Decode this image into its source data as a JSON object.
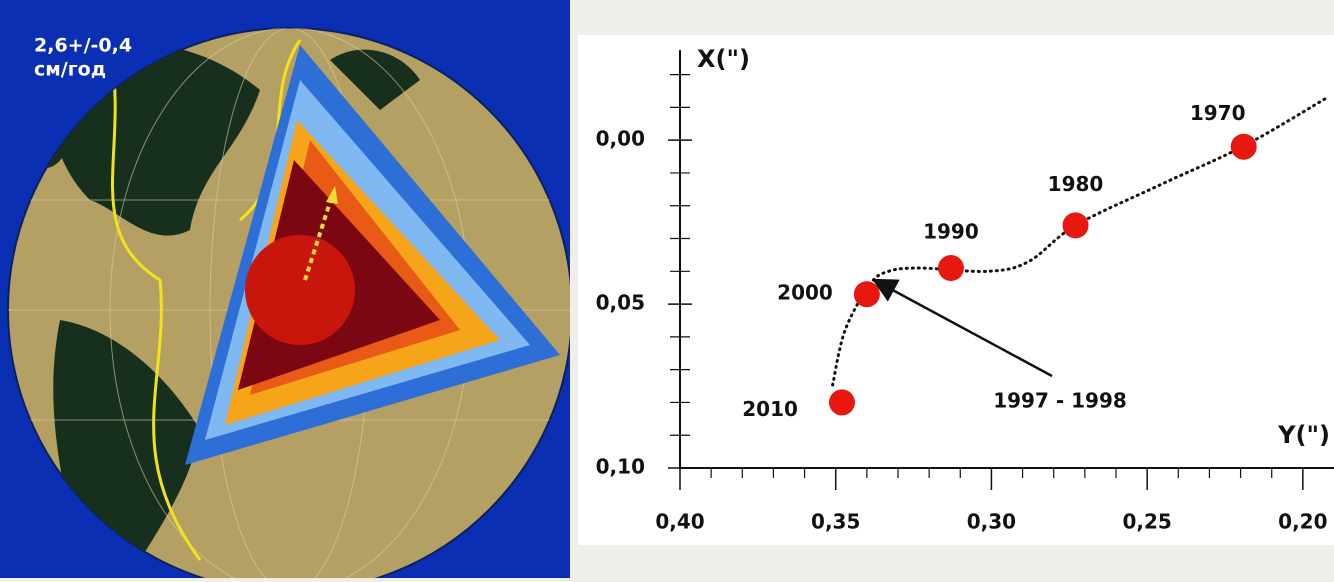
{
  "panel_text": {
    "line1": "2,6+/-0,4",
    "line2": "см/год"
  },
  "chart_data": {
    "type": "scatter",
    "xlabel": "Y(\")",
    "ylabel": "X(\")",
    "xlim": [
      0.4,
      0.19
    ],
    "ylim": [
      0.1,
      -0.0275
    ],
    "xticks": [
      {
        "value": 0.4,
        "label": "0,40"
      },
      {
        "value": 0.35,
        "label": "0,35"
      },
      {
        "value": 0.3,
        "label": "0,30"
      },
      {
        "value": 0.25,
        "label": "0,25"
      },
      {
        "value": 0.2,
        "label": "0,20"
      }
    ],
    "xminor": [
      0.39,
      0.38,
      0.37,
      0.36,
      0.34,
      0.33,
      0.32,
      0.31,
      0.29,
      0.28,
      0.27,
      0.26,
      0.24,
      0.23,
      0.22,
      0.21
    ],
    "yticks": [
      {
        "value": 0.0,
        "label": "0,00"
      },
      {
        "value": 0.05,
        "label": "0,05"
      },
      {
        "value": 0.1,
        "label": "0,10"
      }
    ],
    "yminor": [
      -0.02,
      -0.01,
      0.01,
      0.02,
      0.03,
      0.04,
      0.06,
      0.07,
      0.08,
      0.09
    ],
    "series": [
      {
        "color": "#e8170f",
        "labels": [
          "1970",
          "1980",
          "1990",
          "2000",
          "2010"
        ],
        "x": [
          0.219,
          0.273,
          0.313,
          0.34,
          0.348
        ],
        "values": [
          0.002,
          0.026,
          0.039,
          0.047,
          0.08
        ]
      }
    ],
    "curve": {
      "x": [
        0.351,
        0.347,
        0.339,
        0.333,
        0.323,
        0.301,
        0.288,
        0.273,
        0.246,
        0.219,
        0.192
      ],
      "y": [
        0.0747,
        0.058,
        0.044,
        0.04,
        0.039,
        0.04,
        0.037,
        0.026,
        0.0137,
        0.0018,
        -0.0131
      ]
    },
    "annotation": {
      "text": "1997 - 1998",
      "x": 0.337,
      "y": 0.043
    }
  }
}
